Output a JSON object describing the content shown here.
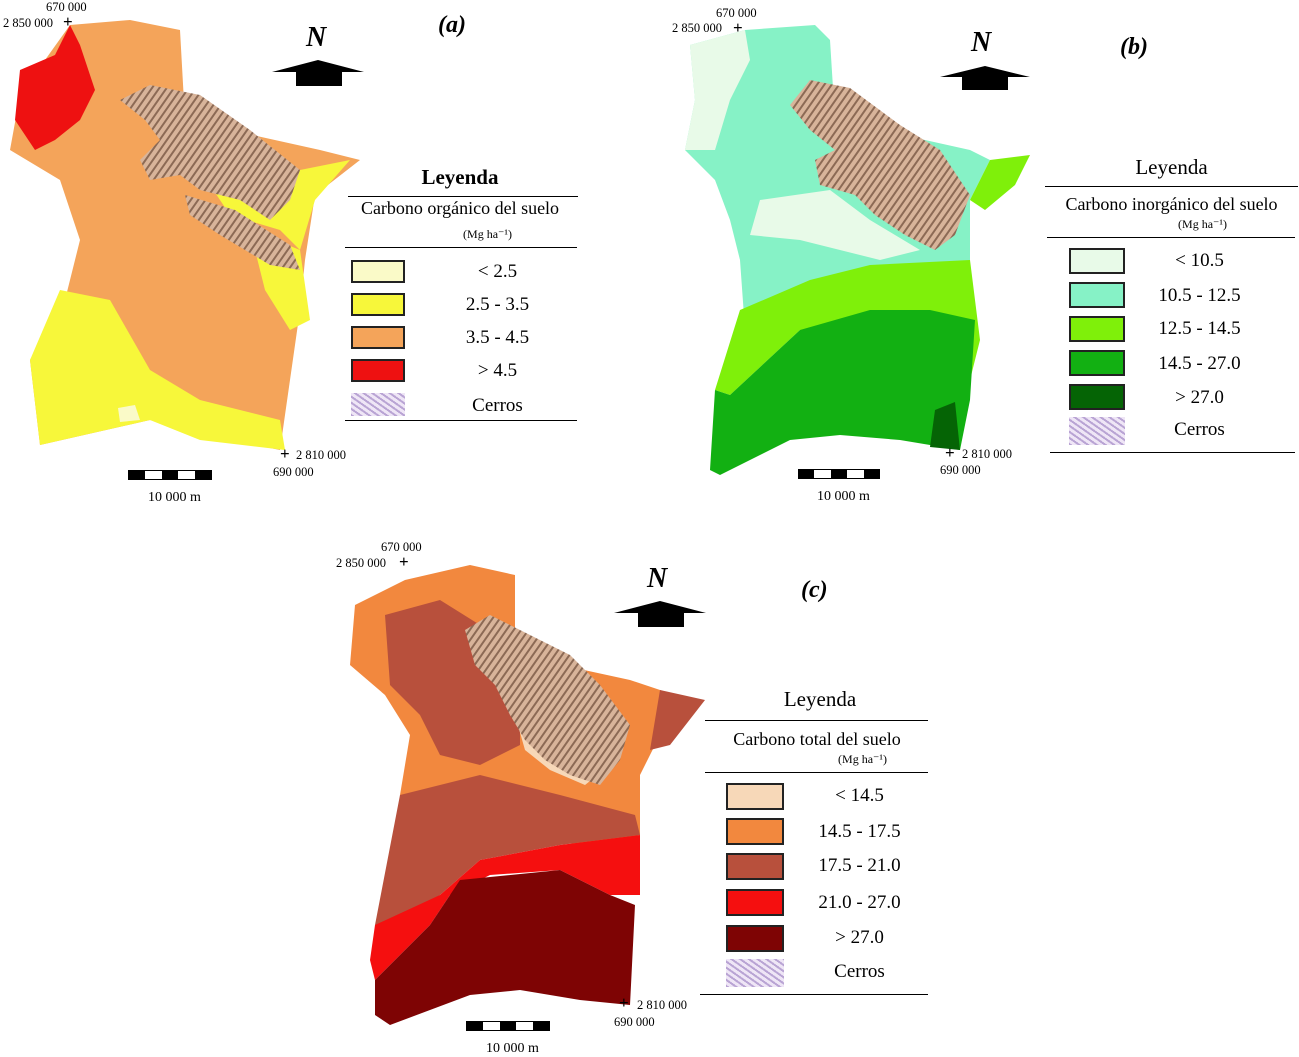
{
  "panels": [
    {
      "id": "a",
      "label": "(a)",
      "north": "N",
      "coord_tl_x": "670 000",
      "coord_tl_y": "2 850 000",
      "coord_br_y": "2 810 000",
      "coord_br_x": "690 000",
      "scale_label": "10 000 m",
      "legend_title": "Leyenda",
      "legend_subtitle": "Carbono orgánico del suelo",
      "legend_unit": "(Mg ha⁻¹)",
      "classes": [
        {
          "label": "< 2.5",
          "color": "#fafac8"
        },
        {
          "label": "2.5 - 3.5",
          "color": "#f7f73a"
        },
        {
          "label": "3.5 - 4.5",
          "color": "#f4a45a"
        },
        {
          "label": "> 4.5",
          "color": "#ee1111"
        },
        {
          "label": "Cerros",
          "color": "hatch"
        }
      ]
    },
    {
      "id": "b",
      "label": "(b)",
      "north": "N",
      "coord_tl_x": "670 000",
      "coord_tl_y": "2 850 000",
      "coord_br_y": "2 810 000",
      "coord_br_x": "690 000",
      "scale_label": "10 000 m",
      "legend_title": "Leyenda",
      "legend_subtitle": "Carbono inorgánico del suelo",
      "legend_unit": "(Mg ha⁻¹)",
      "classes": [
        {
          "label": "< 10.5",
          "color": "#e8fae8"
        },
        {
          "label": "10.5 - 12.5",
          "color": "#86f2c6"
        },
        {
          "label": "12.5 - 14.5",
          "color": "#7ff00a"
        },
        {
          "label": "14.5 - 27.0",
          "color": "#12b012"
        },
        {
          "label": "> 27.0",
          "color": "#056405"
        },
        {
          "label": "Cerros",
          "color": "hatch"
        }
      ]
    },
    {
      "id": "c",
      "label": "(c)",
      "north": "N",
      "coord_tl_x": "670 000",
      "coord_tl_y": "2 850 000",
      "coord_br_y": "2 810 000",
      "coord_br_x": "690 000",
      "scale_label": "10 000 m",
      "legend_title": "Leyenda",
      "legend_subtitle": "Carbono total del suelo",
      "legend_unit": "(Mg ha⁻¹)",
      "classes": [
        {
          "label": "< 14.5",
          "color": "#f7d8b8"
        },
        {
          "label": "14.5 - 17.5",
          "color": "#f2883e"
        },
        {
          "label": "17.5 - 21.0",
          "color": "#b8503c"
        },
        {
          "label": "21.0 - 27.0",
          "color": "#f50f0f"
        },
        {
          "label": "> 27.0",
          "color": "#7e0404"
        },
        {
          "label": "Cerros",
          "color": "hatch"
        }
      ]
    }
  ]
}
